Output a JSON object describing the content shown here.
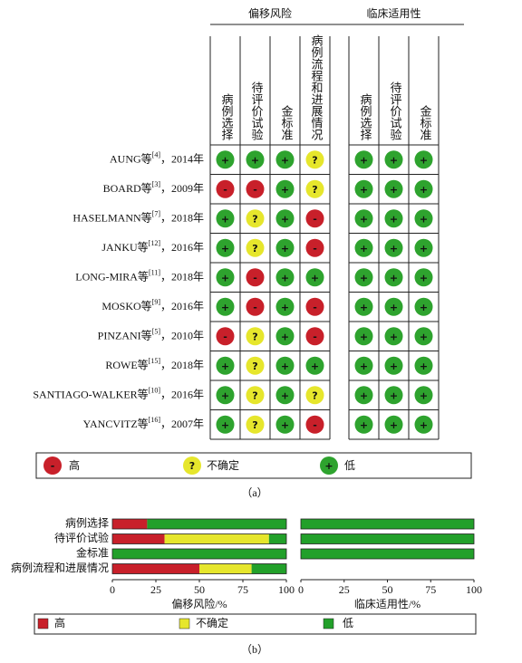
{
  "table": {
    "groups": [
      {
        "label": "偏移风险",
        "columns": [
          "病例选择",
          "待评价试验",
          "金标准",
          "病例流程和进展情况"
        ]
      },
      {
        "label": "临床适用性",
        "columns": [
          "病例选择",
          "待评价试验",
          "金标准"
        ]
      }
    ],
    "rows": [
      {
        "author": "AUNG等",
        "ref": "[4]",
        "year": "，2014年",
        "cells": [
          "+",
          "+",
          "+",
          "?",
          "+",
          "+",
          "+"
        ]
      },
      {
        "author": "BOARD等",
        "ref": "[3]",
        "year": "，2009年",
        "cells": [
          "-",
          "-",
          "+",
          "?",
          "+",
          "+",
          "+"
        ]
      },
      {
        "author": "HASELMANN等",
        "ref": "[7]",
        "year": "，2018年",
        "cells": [
          "+",
          "?",
          "+",
          "-",
          "+",
          "+",
          "+"
        ]
      },
      {
        "author": "JANKU等",
        "ref": "[12]",
        "year": "，2016年",
        "cells": [
          "+",
          "?",
          "+",
          "-",
          "+",
          "+",
          "+"
        ]
      },
      {
        "author": "LONG-MIRA等",
        "ref": "[11]",
        "year": "，2018年",
        "cells": [
          "+",
          "-",
          "+",
          "+",
          "+",
          "+",
          "+"
        ]
      },
      {
        "author": "MOSKO等",
        "ref": "[9]",
        "year": "，2016年",
        "cells": [
          "+",
          "-",
          "+",
          "-",
          "+",
          "+",
          "+"
        ]
      },
      {
        "author": "PINZANI等",
        "ref": "[5]",
        "year": "，2010年",
        "cells": [
          "-",
          "?",
          "+",
          "-",
          "+",
          "+",
          "+"
        ]
      },
      {
        "author": "ROWE等",
        "ref": "[15]",
        "year": "，2018年",
        "cells": [
          "+",
          "?",
          "+",
          "+",
          "+",
          "+",
          "+"
        ]
      },
      {
        "author": "SANTIAGO-WALKER等",
        "ref": "[10]",
        "year": "，2016年",
        "cells": [
          "+",
          "?",
          "+",
          "?",
          "+",
          "+",
          "+"
        ]
      },
      {
        "author": "YANCVITZ等",
        "ref": "[16]",
        "year": "，2007年",
        "cells": [
          "+",
          "?",
          "+",
          "-",
          "+",
          "+",
          "+"
        ]
      }
    ]
  },
  "legend_a": [
    {
      "symbol": "-",
      "label": "高",
      "color": "#c8202a"
    },
    {
      "symbol": "?",
      "label": "不确定",
      "color": "#e6e62c"
    },
    {
      "symbol": "+",
      "label": "低",
      "color": "#2ea32e"
    }
  ],
  "caption_a": "（a）",
  "chart_data": [
    {
      "type": "bar",
      "orientation": "horizontal",
      "stacked": true,
      "categories": [
        "病例选择",
        "待评价试验",
        "金标准",
        "病例流程和进展情况"
      ],
      "series": [
        {
          "name": "高",
          "color": "#c8202a",
          "values": [
            20,
            30,
            0,
            50
          ]
        },
        {
          "name": "不确定",
          "color": "#e6e62c",
          "values": [
            0,
            60,
            0,
            30
          ]
        },
        {
          "name": "低",
          "color": "#22a02a",
          "values": [
            80,
            10,
            100,
            20
          ]
        }
      ],
      "xlabel": "偏移风险/%",
      "xlim": [
        0,
        100
      ],
      "xticks": [
        0,
        25,
        50,
        75,
        100
      ]
    },
    {
      "type": "bar",
      "orientation": "horizontal",
      "stacked": true,
      "categories": [
        null,
        null,
        null
      ],
      "series": [
        {
          "name": "高",
          "color": "#c8202a",
          "values": [
            0,
            0,
            0
          ]
        },
        {
          "name": "不确定",
          "color": "#e6e62c",
          "values": [
            0,
            0,
            0
          ]
        },
        {
          "name": "低",
          "color": "#22a02a",
          "values": [
            100,
            100,
            100
          ]
        }
      ],
      "xlabel": "临床适用性/%",
      "xlim": [
        0,
        100
      ],
      "xticks": [
        0,
        25,
        50,
        75,
        100
      ]
    }
  ],
  "caption_b": "（b）"
}
